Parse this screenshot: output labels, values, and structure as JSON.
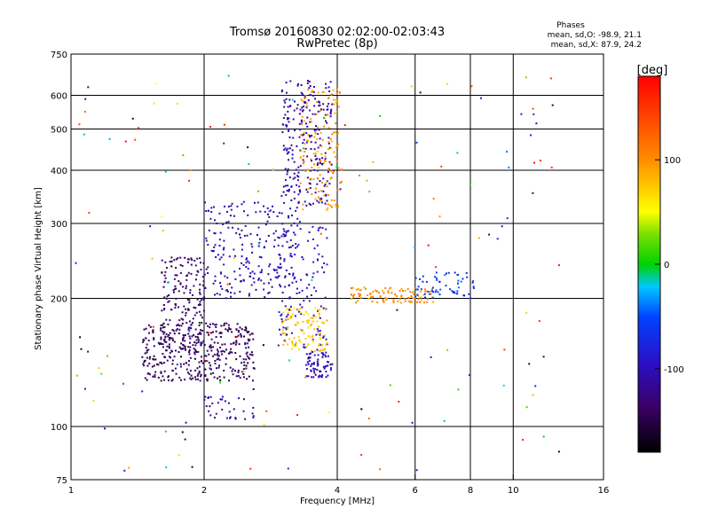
{
  "chart_data": {
    "type": "scatter",
    "title": "Tromsø 20160830 02:02:00-02:03:43",
    "subtitle": "RwPretec (8p)",
    "xlabel": "Frequency [MHz]",
    "ylabel": "Stationary phase Virtual Height [km]",
    "x_scale": "log",
    "y_scale": "log",
    "xlim": [
      1,
      16
    ],
    "ylim": [
      75,
      750
    ],
    "x_ticks": [
      1,
      2,
      4,
      6,
      8,
      10,
      16
    ],
    "x_gridlines": [
      2,
      4,
      6,
      8,
      10
    ],
    "y_ticks": [
      75,
      100,
      200,
      300,
      400,
      500,
      600,
      750
    ],
    "y_gridlines": [
      100,
      200,
      300,
      400,
      500,
      600
    ],
    "grid": true,
    "phase_note": {
      "title": "Phases",
      "line1": "mean, sd,O: -98.9, 21.1",
      "line2": "mean, sd,X:  87.9, 24.2"
    },
    "colorbar": {
      "label": "[deg]",
      "ticks": [
        100,
        0,
        -100
      ],
      "range": [
        -180,
        180
      ],
      "colormap": "rainbow: black at -180, violet, blue, cyan, green at 0, yellow, orange, red at 180"
    },
    "clusters": [
      {
        "name": "low-E violet layer",
        "x_range": [
          1.45,
          2.6
        ],
        "y_range": [
          128,
          175
        ],
        "phase_deg": -140,
        "count": 380
      },
      {
        "name": "low-E upper spread",
        "x_range": [
          1.6,
          2.0
        ],
        "y_range": [
          150,
          250
        ],
        "phase_deg": -135,
        "count": 170
      },
      {
        "name": "F1 ascending blue",
        "x_range": [
          2.0,
          3.3
        ],
        "y_range": [
          200,
          340
        ],
        "phase_deg": -105,
        "count": 230
      },
      {
        "name": "F2 blue cusp",
        "x_range": [
          3.0,
          3.9
        ],
        "y_range": [
          330,
          650
        ],
        "phase_deg": -110,
        "count": 240
      },
      {
        "name": "F2 yellow X-mode",
        "x_range": [
          3.3,
          4.1
        ],
        "y_range": [
          320,
          620
        ],
        "phase_deg": 95,
        "count": 140
      },
      {
        "name": "mid blue column",
        "x_range": [
          2.9,
          3.8
        ],
        "y_range": [
          150,
          300
        ],
        "phase_deg": -95,
        "count": 120
      },
      {
        "name": "yellow-green cluster",
        "x_range": [
          3.0,
          3.8
        ],
        "y_range": [
          150,
          190
        ],
        "phase_deg": 75,
        "count": 110
      },
      {
        "name": "blue cluster near 140 km",
        "x_range": [
          3.4,
          3.9
        ],
        "y_range": [
          130,
          150
        ],
        "phase_deg": -100,
        "count": 70
      },
      {
        "name": "horizontal yellow trace",
        "x_range": [
          4.3,
          6.6
        ],
        "y_range": [
          195,
          212
        ],
        "phase_deg": 100,
        "count": 100
      },
      {
        "name": "blue trace near 200-230 km",
        "x_range": [
          6.0,
          8.3
        ],
        "y_range": [
          200,
          230
        ],
        "phase_deg": -60,
        "count": 60
      },
      {
        "name": "low blue tail near 110 km",
        "x_range": [
          2.0,
          2.6
        ],
        "y_range": [
          104,
          118
        ],
        "phase_deg": -110,
        "count": 35
      },
      {
        "name": "scattered noise",
        "x_range": [
          1.0,
          13.0
        ],
        "y_range": [
          78,
          680
        ],
        "phase_deg": 0,
        "count": 170
      }
    ]
  }
}
